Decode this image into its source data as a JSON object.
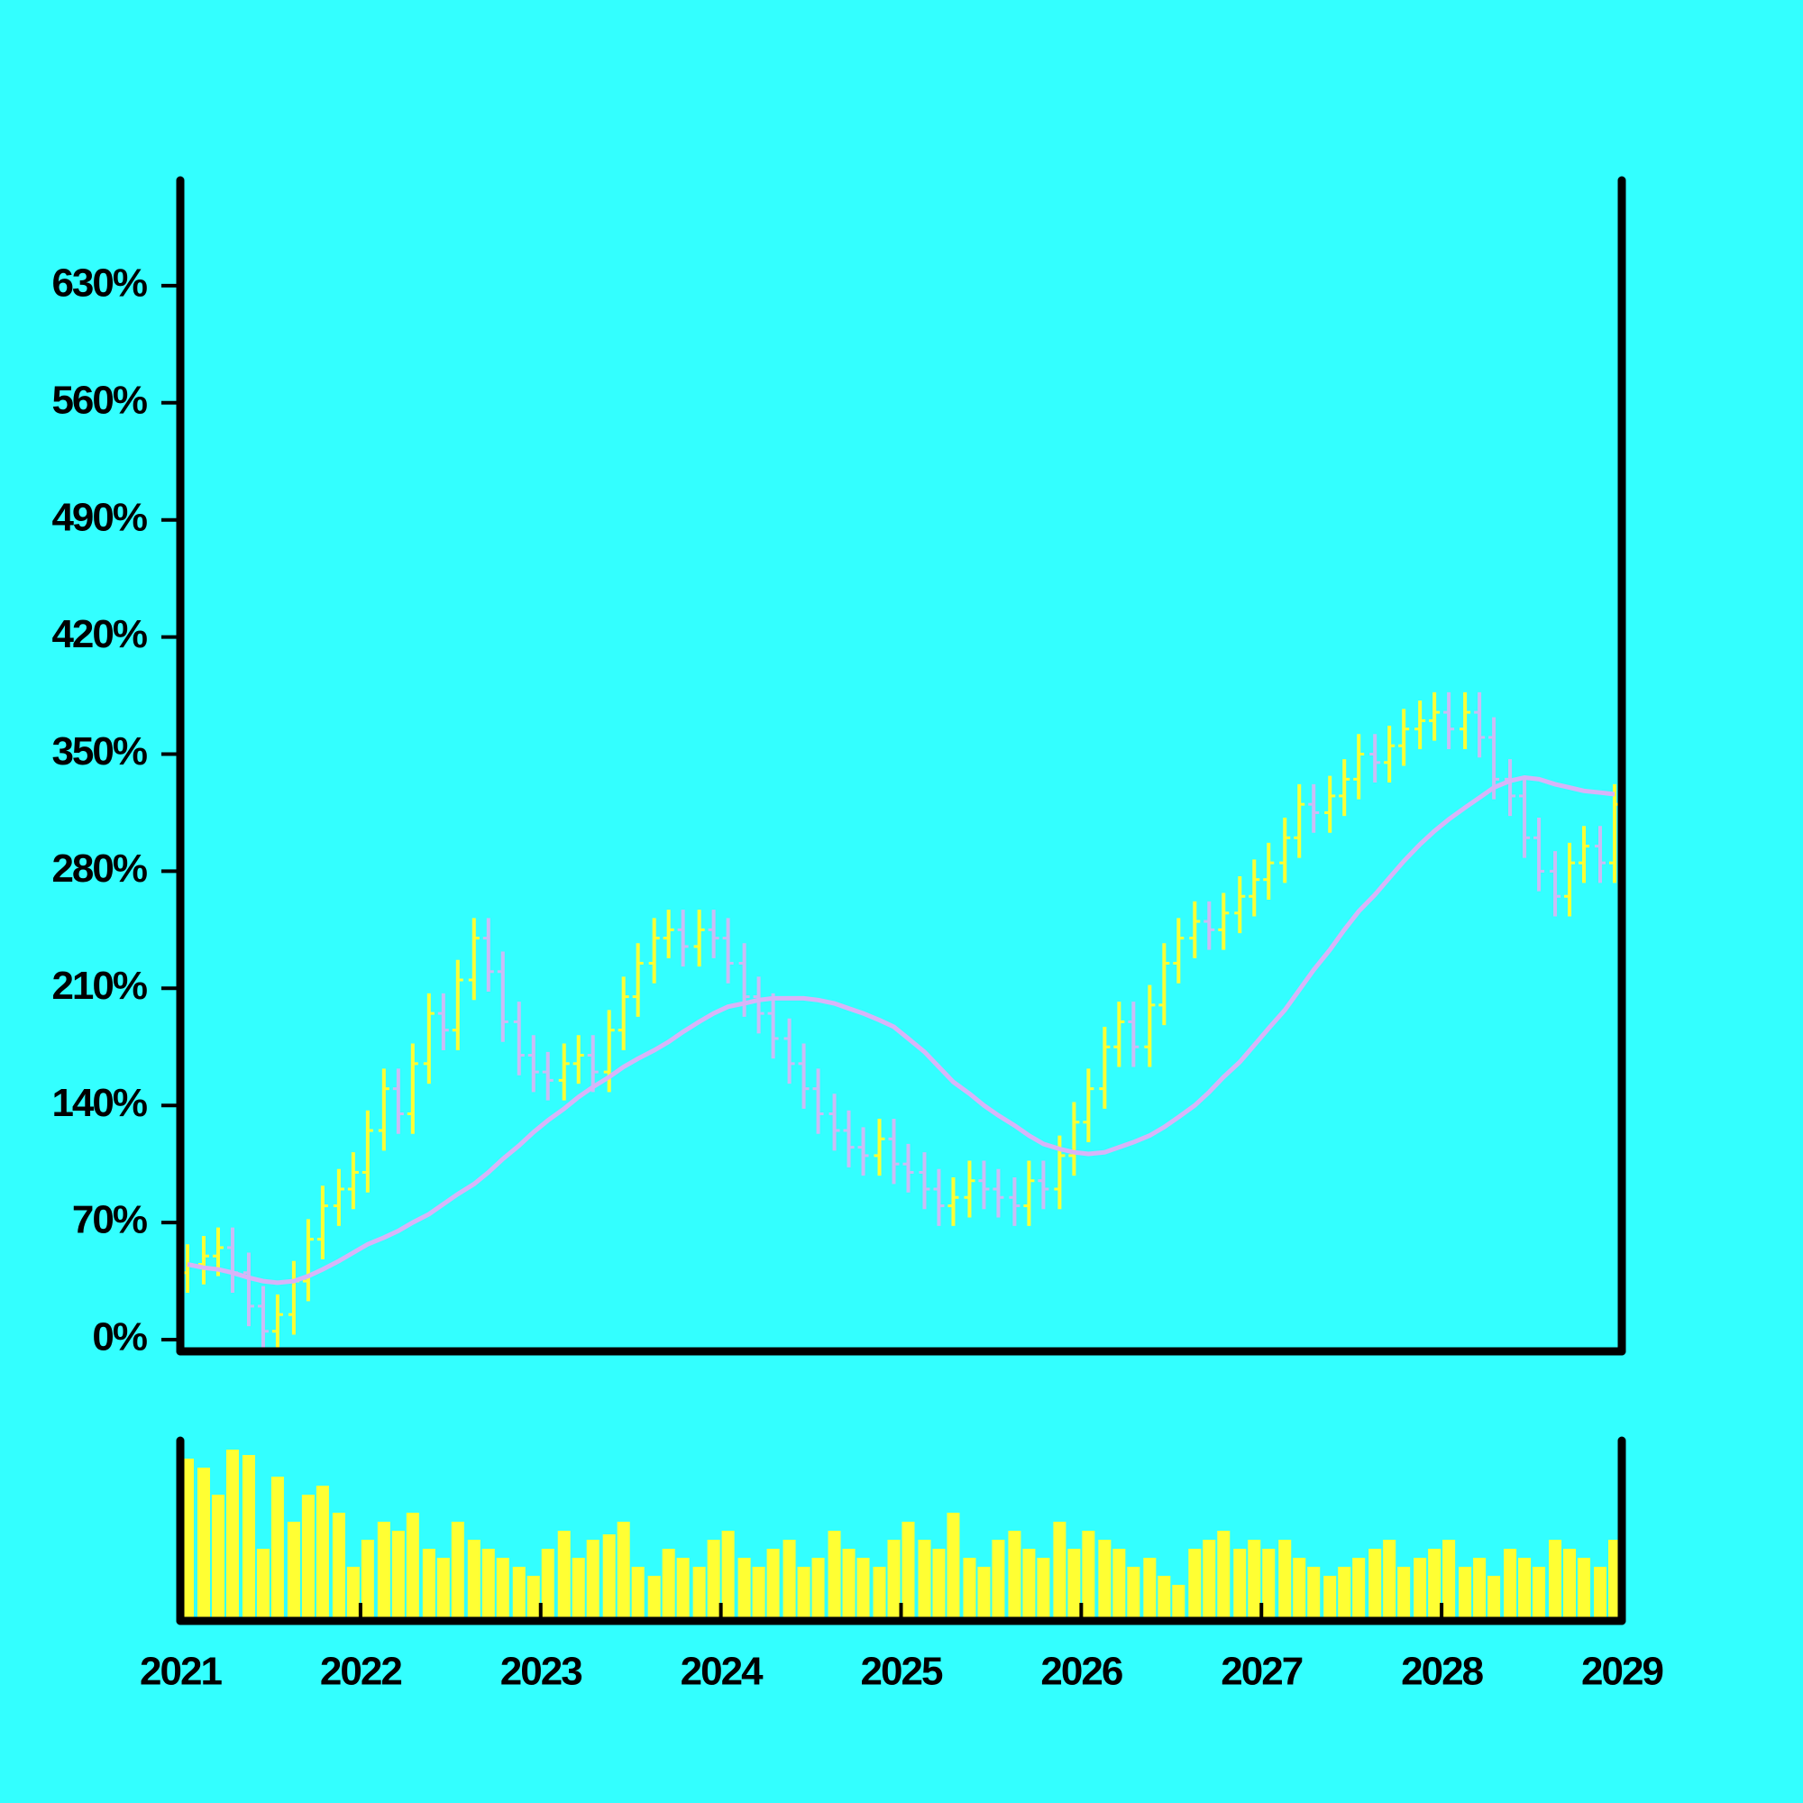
{
  "chart_data": {
    "type": "ohlc",
    "x": [
      2021.04,
      2021.13,
      2021.21,
      2021.29,
      2021.38,
      2021.46,
      2021.54,
      2021.63,
      2021.71,
      2021.79,
      2021.88,
      2021.96,
      2022.04,
      2022.13,
      2022.21,
      2022.29,
      2022.38,
      2022.46,
      2022.54,
      2022.63,
      2022.71,
      2022.79,
      2022.88,
      2022.96,
      2023.04,
      2023.13,
      2023.21,
      2023.29,
      2023.38,
      2023.46,
      2023.54,
      2023.63,
      2023.71,
      2023.79,
      2023.88,
      2023.96,
      2024.04,
      2024.13,
      2024.21,
      2024.29,
      2024.38,
      2024.46,
      2024.54,
      2024.63,
      2024.71,
      2024.79,
      2024.88,
      2024.96,
      2025.04,
      2025.13,
      2025.21,
      2025.29,
      2025.38,
      2025.46,
      2025.54,
      2025.63,
      2025.71,
      2025.79,
      2025.88,
      2025.96,
      2026.04,
      2026.13,
      2026.21,
      2026.29,
      2026.38,
      2026.46,
      2026.54,
      2026.63,
      2026.71,
      2026.79,
      2026.88,
      2026.96,
      2027.04,
      2027.13,
      2027.21,
      2027.29,
      2027.38,
      2027.46,
      2027.54,
      2027.63,
      2027.71,
      2027.79,
      2027.88,
      2027.96,
      2028.04,
      2028.13,
      2028.21,
      2028.29,
      2028.38,
      2028.46,
      2028.54,
      2028.63,
      2028.71,
      2028.79,
      2028.88,
      2028.96
    ],
    "opens": [
      40,
      45,
      50,
      55,
      40,
      20,
      5,
      15,
      35,
      60,
      80,
      90,
      100,
      125,
      150,
      135,
      165,
      195,
      185,
      215,
      240,
      220,
      190,
      170,
      160,
      155,
      165,
      170,
      160,
      185,
      205,
      225,
      240,
      245,
      235,
      245,
      240,
      225,
      205,
      195,
      180,
      165,
      150,
      135,
      125,
      115,
      110,
      120,
      105,
      100,
      90,
      80,
      85,
      95,
      90,
      85,
      80,
      95,
      90,
      110,
      130,
      150,
      175,
      190,
      175,
      200,
      225,
      240,
      250,
      245,
      255,
      265,
      275,
      285,
      300,
      320,
      315,
      325,
      335,
      350,
      345,
      355,
      365,
      370,
      375,
      365,
      375,
      360,
      335,
      325,
      300,
      280,
      265,
      285,
      295,
      285
    ],
    "highs": [
      57,
      62,
      67,
      67,
      52,
      32,
      27,
      47,
      72,
      92,
      102,
      112,
      137,
      162,
      162,
      177,
      207,
      207,
      227,
      252,
      252,
      232,
      202,
      182,
      172,
      177,
      182,
      182,
      197,
      217,
      237,
      252,
      257,
      257,
      257,
      257,
      252,
      237,
      217,
      207,
      192,
      177,
      162,
      147,
      137,
      127,
      132,
      132,
      117,
      112,
      102,
      97,
      107,
      107,
      102,
      97,
      107,
      107,
      122,
      142,
      162,
      187,
      202,
      202,
      212,
      237,
      252,
      262,
      262,
      267,
      277,
      287,
      297,
      312,
      332,
      332,
      337,
      347,
      362,
      362,
      367,
      377,
      382,
      387,
      387,
      387,
      387,
      372,
      347,
      337,
      312,
      292,
      297,
      307,
      307,
      332
    ],
    "lows": [
      28,
      33,
      38,
      28,
      8,
      -7,
      -7,
      3,
      23,
      48,
      68,
      78,
      88,
      113,
      123,
      123,
      153,
      173,
      173,
      203,
      208,
      178,
      158,
      148,
      143,
      143,
      153,
      148,
      148,
      173,
      193,
      213,
      228,
      223,
      223,
      228,
      213,
      193,
      183,
      168,
      153,
      138,
      123,
      113,
      103,
      98,
      98,
      93,
      88,
      78,
      68,
      68,
      73,
      78,
      73,
      68,
      68,
      78,
      78,
      98,
      118,
      138,
      163,
      163,
      163,
      188,
      213,
      228,
      233,
      233,
      243,
      253,
      263,
      273,
      288,
      303,
      303,
      313,
      323,
      333,
      333,
      343,
      353,
      358,
      353,
      353,
      348,
      323,
      313,
      288,
      268,
      253,
      253,
      273,
      273,
      273
    ],
    "closes": [
      45,
      50,
      55,
      40,
      20,
      5,
      15,
      35,
      60,
      80,
      90,
      100,
      125,
      150,
      135,
      165,
      195,
      185,
      215,
      240,
      220,
      190,
      170,
      160,
      155,
      165,
      170,
      160,
      185,
      205,
      225,
      240,
      245,
      235,
      245,
      240,
      225,
      205,
      195,
      180,
      165,
      150,
      135,
      125,
      115,
      110,
      120,
      105,
      100,
      90,
      80,
      85,
      95,
      90,
      85,
      80,
      95,
      90,
      110,
      130,
      150,
      175,
      190,
      175,
      200,
      225,
      240,
      250,
      245,
      255,
      265,
      275,
      285,
      300,
      320,
      315,
      325,
      335,
      350,
      345,
      355,
      365,
      370,
      375,
      365,
      375,
      360,
      335,
      325,
      300,
      280,
      265,
      285,
      295,
      285,
      320
    ],
    "up_color": "#ffff33",
    "down_color": "#ccbbf5",
    "moving_average": {
      "color": "#d8b4f8",
      "values": [
        45,
        43,
        42,
        40,
        37,
        35,
        34,
        35,
        38,
        42,
        47,
        52,
        57,
        61,
        65,
        70,
        75,
        81,
        87,
        93,
        100,
        108,
        116,
        124,
        131,
        138,
        145,
        151,
        157,
        163,
        168,
        173,
        178,
        184,
        190,
        195,
        199,
        201,
        203,
        204,
        204,
        204,
        203,
        201,
        198,
        195,
        191,
        187,
        180,
        172,
        163,
        154,
        147,
        140,
        134,
        128,
        122,
        117,
        114,
        112,
        111,
        112,
        115,
        118,
        122,
        127,
        133,
        140,
        148,
        157,
        166,
        176,
        186,
        197,
        209,
        221,
        233,
        245,
        256,
        266,
        276,
        286,
        296,
        304,
        311,
        318,
        324,
        330,
        334,
        336,
        335,
        332,
        330,
        328,
        327,
        326
      ]
    },
    "volume": {
      "color": "#ffff33",
      "ylim": [
        0,
        100
      ],
      "values": [
        90,
        85,
        70,
        95,
        92,
        40,
        80,
        55,
        70,
        75,
        60,
        30,
        45,
        55,
        50,
        60,
        40,
        35,
        55,
        45,
        40,
        35,
        30,
        25,
        40,
        50,
        35,
        45,
        48,
        55,
        30,
        25,
        40,
        35,
        30,
        45,
        50,
        35,
        30,
        40,
        45,
        30,
        35,
        50,
        40,
        35,
        30,
        45,
        55,
        45,
        40,
        60,
        35,
        30,
        45,
        50,
        40,
        35,
        55,
        40,
        50,
        45,
        40,
        30,
        35,
        25,
        20,
        40,
        45,
        50,
        40,
        45,
        40,
        45,
        35,
        30,
        25,
        30,
        35,
        40,
        45,
        30,
        35,
        40,
        45,
        30,
        35,
        25,
        40,
        35,
        30,
        45,
        40,
        35,
        30,
        45
      ]
    },
    "xlim": [
      2021,
      2029
    ],
    "xticks": [
      2021,
      2022,
      2023,
      2024,
      2025,
      2026,
      2027,
      2028,
      2029
    ],
    "ylim": [
      -7,
      693
    ],
    "yticks": [
      {
        "value": 0,
        "label": "0%"
      },
      {
        "value": 70,
        "label": "70%"
      },
      {
        "value": 140,
        "label": "140%"
      },
      {
        "value": 210,
        "label": "210%"
      },
      {
        "value": 280,
        "label": "280%"
      },
      {
        "value": 350,
        "label": "350%"
      },
      {
        "value": 420,
        "label": "420%"
      },
      {
        "value": 490,
        "label": "490%"
      },
      {
        "value": 560,
        "label": "560%"
      },
      {
        "value": 630,
        "label": "630%"
      }
    ]
  }
}
